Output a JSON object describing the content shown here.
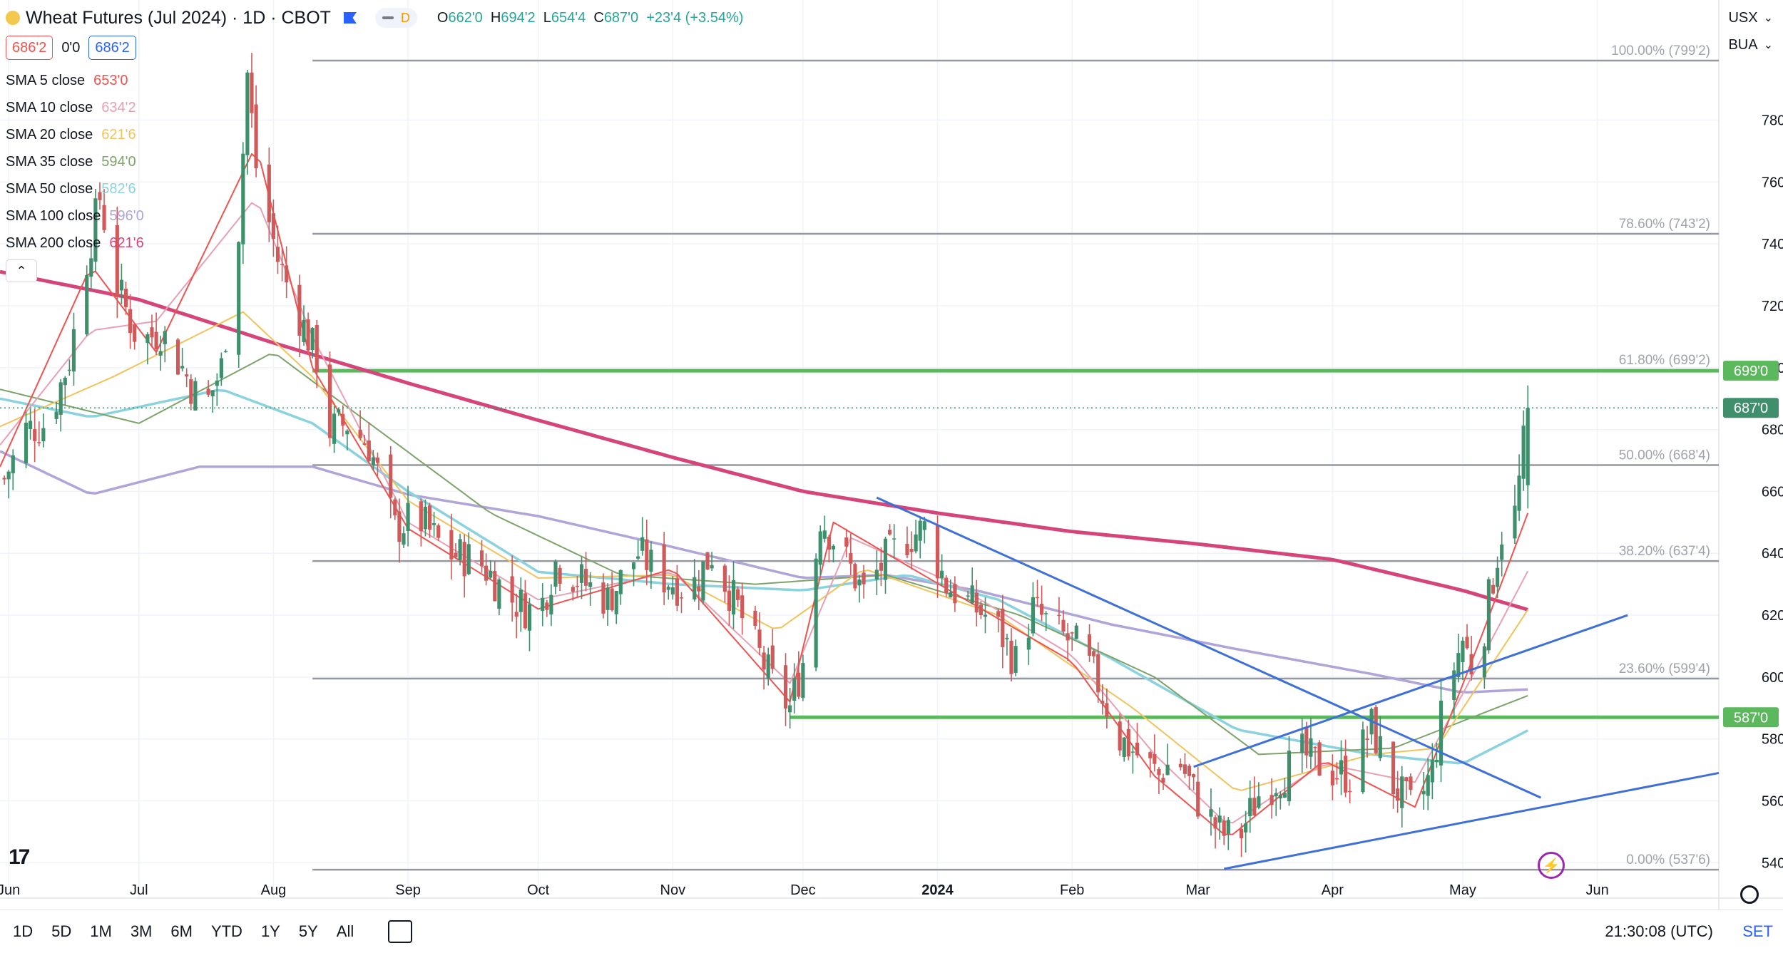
{
  "header": {
    "title": "Wheat Futures (Jul 2024) · 1D · CBOT",
    "pill_mark": "D",
    "ohlc": {
      "o_label": "O",
      "o": "662'0",
      "h_label": "H",
      "h": "694'2",
      "l_label": "L",
      "l": "654'4",
      "c_label": "C",
      "c": "687'0",
      "change": "+23'4 (+3.54%)"
    }
  },
  "trade": {
    "sell": "686'2",
    "spread": "0'0",
    "buy": "686'2"
  },
  "indicators": [
    {
      "name": "SMA 5 close",
      "value": "653'0",
      "color": "#ef5350"
    },
    {
      "name": "SMA 10 close",
      "value": "634'2",
      "color": "#e8a0b4"
    },
    {
      "name": "SMA 20 close",
      "value": "621'6",
      "color": "#f0c45a"
    },
    {
      "name": "SMA 35 close",
      "value": "594'0",
      "color": "#7da36a"
    },
    {
      "name": "SMA 50 close",
      "value": "582'6",
      "color": "#8ad2de"
    },
    {
      "name": "SMA 100 close",
      "value": "596'0",
      "color": "#b0a4d8"
    },
    {
      "name": "SMA 200 close",
      "value": "621'6",
      "color": "#d6457a"
    }
  ],
  "currency": "USX",
  "units_menu": "BUA",
  "timeframes": [
    "1D",
    "5D",
    "1M",
    "3M",
    "6M",
    "YTD",
    "1Y",
    "5Y",
    "All"
  ],
  "clock": "21:30:08 (UTC)",
  "tz_button": "SET",
  "chart_data": {
    "type": "candlestick",
    "title": "Wheat Futures (Jul 2024) · 1D · CBOT",
    "y_range": [
      535,
      805
    ],
    "y_ticks": [
      "540'0",
      "560'0",
      "580'0",
      "600'0",
      "620'0",
      "640'0",
      "660'0",
      "680'0",
      "700'0",
      "720'0",
      "740'0",
      "760'0",
      "780'0"
    ],
    "y_tick_values": [
      540,
      560,
      580,
      600,
      620,
      640,
      660,
      680,
      700,
      720,
      740,
      760,
      780
    ],
    "x_ticks": [
      "Jun",
      "Jul",
      "Aug",
      "Sep",
      "Oct",
      "Nov",
      "Dec",
      "2024",
      "Feb",
      "Mar",
      "Apr",
      "May",
      "Jun"
    ],
    "x_tick_dates": [
      "2023-06-01",
      "2023-07-01",
      "2023-08-01",
      "2023-09-01",
      "2023-10-01",
      "2023-11-01",
      "2023-12-01",
      "2024-01-01",
      "2024-02-01",
      "2024-03-01",
      "2024-04-01",
      "2024-05-01",
      "2024-06-01"
    ],
    "x_range": [
      "2023-05-30",
      "2024-06-29"
    ],
    "grid": true,
    "last_price": {
      "value": 687,
      "label": "687'0"
    },
    "fib_levels": [
      {
        "label": "100.00% (799'2)",
        "value": 799.25
      },
      {
        "label": "78.60% (743'2)",
        "value": 743.25
      },
      {
        "label": "61.80% (699'2)",
        "value": 699.25
      },
      {
        "label": "50.00% (668'4)",
        "value": 668.5
      },
      {
        "label": "38.20% (637'4)",
        "value": 637.5
      },
      {
        "label": "23.60% (599'4)",
        "value": 599.5
      },
      {
        "label": "0.00% (537'6)",
        "value": 537.75
      }
    ],
    "fib_start_date": "2023-08-10",
    "horizontal_lines": [
      {
        "value": 699,
        "label": "699'0",
        "start": "2023-08-10",
        "color": "#5cb85c"
      },
      {
        "value": 587,
        "label": "587'0",
        "start": "2023-11-28",
        "color": "#5cb85c"
      }
    ],
    "trendlines": [
      {
        "from": [
          "2023-12-18",
          658
        ],
        "to": [
          "2024-05-19",
          561
        ]
      },
      {
        "from": [
          "2024-02-29",
          571
        ],
        "to": [
          "2024-06-08",
          620
        ]
      },
      {
        "from": [
          "2024-03-07",
          538
        ],
        "to": [
          "2024-06-29",
          569
        ]
      }
    ],
    "candle_points": [
      [
        "2023-05-31",
        664
      ],
      [
        "2023-06-05",
        680
      ],
      [
        "2023-06-10",
        682
      ],
      [
        "2023-06-15",
        703
      ],
      [
        "2023-06-19",
        735
      ],
      [
        "2023-06-22",
        755
      ],
      [
        "2023-06-26",
        726
      ],
      [
        "2023-07-01",
        708
      ],
      [
        "2023-07-06",
        712
      ],
      [
        "2023-07-11",
        700
      ],
      [
        "2023-07-16",
        686
      ],
      [
        "2023-07-20",
        700
      ],
      [
        "2023-07-24",
        745
      ],
      [
        "2023-07-26",
        795
      ],
      [
        "2023-07-28",
        765
      ],
      [
        "2023-08-02",
        735
      ],
      [
        "2023-08-06",
        720
      ],
      [
        "2023-08-11",
        703
      ],
      [
        "2023-08-14",
        680
      ],
      [
        "2023-08-18",
        682
      ],
      [
        "2023-08-23",
        675
      ],
      [
        "2023-08-29",
        648
      ],
      [
        "2023-09-03",
        652
      ],
      [
        "2023-09-10",
        640
      ],
      [
        "2023-09-17",
        638
      ],
      [
        "2023-09-25",
        625
      ],
      [
        "2023-10-01",
        620
      ],
      [
        "2023-10-05",
        637
      ],
      [
        "2023-10-10",
        632
      ],
      [
        "2023-10-17",
        625
      ],
      [
        "2023-10-24",
        640
      ],
      [
        "2023-10-30",
        632
      ],
      [
        "2023-11-05",
        628
      ],
      [
        "2023-11-10",
        640
      ],
      [
        "2023-11-15",
        625
      ],
      [
        "2023-11-20",
        610
      ],
      [
        "2023-11-24",
        598
      ],
      [
        "2023-11-28",
        590
      ],
      [
        "2023-12-01",
        605
      ],
      [
        "2023-12-05",
        652
      ],
      [
        "2023-12-10",
        640
      ],
      [
        "2023-12-15",
        627
      ],
      [
        "2023-12-20",
        638
      ],
      [
        "2023-12-25",
        645
      ],
      [
        "2023-12-29",
        648
      ],
      [
        "2024-01-03",
        630
      ],
      [
        "2024-01-09",
        623
      ],
      [
        "2024-01-14",
        618
      ],
      [
        "2024-01-19",
        605
      ],
      [
        "2024-01-23",
        622
      ],
      [
        "2024-01-28",
        615
      ],
      [
        "2024-02-02",
        610
      ],
      [
        "2024-02-07",
        598
      ],
      [
        "2024-02-12",
        580
      ],
      [
        "2024-02-16",
        575
      ],
      [
        "2024-02-21",
        568
      ],
      [
        "2024-02-25",
        575
      ],
      [
        "2024-03-01",
        560
      ],
      [
        "2024-03-06",
        550
      ],
      [
        "2024-03-10",
        547
      ],
      [
        "2024-03-15",
        562
      ],
      [
        "2024-03-20",
        568
      ],
      [
        "2024-03-25",
        575
      ],
      [
        "2024-03-31",
        570
      ],
      [
        "2024-04-05",
        568
      ],
      [
        "2024-04-10",
        584
      ],
      [
        "2024-04-15",
        565
      ],
      [
        "2024-04-20",
        556
      ],
      [
        "2024-04-24",
        570
      ],
      [
        "2024-04-27",
        595
      ],
      [
        "2024-05-01",
        612
      ],
      [
        "2024-05-04",
        600
      ],
      [
        "2024-05-07",
        625
      ],
      [
        "2024-05-10",
        647
      ],
      [
        "2024-05-12",
        642
      ],
      [
        "2024-05-14",
        663
      ],
      [
        "2024-05-16",
        687
      ]
    ],
    "sma_series": [
      {
        "name": "SMA 200 close",
        "color": "#d6457a",
        "points": [
          [
            "2023-05-30",
            731
          ],
          [
            "2023-07-01",
            722
          ],
          [
            "2023-08-01",
            708
          ],
          [
            "2023-09-01",
            695
          ],
          [
            "2023-10-01",
            683
          ],
          [
            "2023-11-01",
            671
          ],
          [
            "2023-12-01",
            660
          ],
          [
            "2024-01-01",
            653
          ],
          [
            "2024-02-01",
            647
          ],
          [
            "2024-03-01",
            643
          ],
          [
            "2024-04-01",
            638
          ],
          [
            "2024-05-01",
            628
          ],
          [
            "2024-05-16",
            621.75
          ]
        ]
      },
      {
        "name": "SMA 100 close",
        "color": "#b0a4d8",
        "points": [
          [
            "2023-05-30",
            673
          ],
          [
            "2023-06-20",
            659
          ],
          [
            "2023-07-15",
            668
          ],
          [
            "2023-08-10",
            668
          ],
          [
            "2023-09-01",
            659
          ],
          [
            "2023-10-01",
            652
          ],
          [
            "2023-11-01",
            642
          ],
          [
            "2023-12-01",
            632
          ],
          [
            "2023-12-20",
            633
          ],
          [
            "2024-01-10",
            628
          ],
          [
            "2024-02-10",
            617
          ],
          [
            "2024-03-10",
            609
          ],
          [
            "2024-04-10",
            601
          ],
          [
            "2024-05-01",
            595
          ],
          [
            "2024-05-16",
            596
          ]
        ]
      },
      {
        "name": "SMA 50 close",
        "color": "#8ad2de",
        "points": [
          [
            "2023-05-30",
            690
          ],
          [
            "2023-06-20",
            684
          ],
          [
            "2023-07-20",
            693
          ],
          [
            "2023-08-10",
            682
          ],
          [
            "2023-09-01",
            660
          ],
          [
            "2023-10-01",
            634
          ],
          [
            "2023-11-01",
            630
          ],
          [
            "2023-12-01",
            628
          ],
          [
            "2023-12-25",
            633
          ],
          [
            "2024-01-15",
            625
          ],
          [
            "2024-02-10",
            606
          ],
          [
            "2024-03-10",
            583
          ],
          [
            "2024-04-10",
            575
          ],
          [
            "2024-05-01",
            572
          ],
          [
            "2024-05-16",
            582.75
          ]
        ]
      },
      {
        "name": "SMA 35 close",
        "color": "#7da36a",
        "points": [
          [
            "2023-05-30",
            693
          ],
          [
            "2023-07-01",
            682
          ],
          [
            "2023-08-01",
            705
          ],
          [
            "2023-08-25",
            680
          ],
          [
            "2023-09-20",
            653
          ],
          [
            "2023-10-20",
            633
          ],
          [
            "2023-11-20",
            630
          ],
          [
            "2023-12-20",
            633
          ],
          [
            "2024-01-20",
            620
          ],
          [
            "2024-02-20",
            600
          ],
          [
            "2024-03-15",
            575
          ],
          [
            "2024-04-15",
            577
          ],
          [
            "2024-05-16",
            594
          ]
        ]
      },
      {
        "name": "SMA 20 close",
        "color": "#f0c45a",
        "points": [
          [
            "2023-05-30",
            681
          ],
          [
            "2023-06-25",
            697
          ],
          [
            "2023-07-25",
            718
          ],
          [
            "2023-08-10",
            697
          ],
          [
            "2023-09-01",
            657
          ],
          [
            "2023-10-01",
            632
          ],
          [
            "2023-11-01",
            633
          ],
          [
            "2023-11-25",
            615
          ],
          [
            "2023-12-15",
            635
          ],
          [
            "2024-01-15",
            620
          ],
          [
            "2024-02-15",
            590
          ],
          [
            "2024-03-10",
            563
          ],
          [
            "2024-04-10",
            575
          ],
          [
            "2024-04-25",
            577
          ],
          [
            "2024-05-16",
            621.75
          ]
        ]
      },
      {
        "name": "SMA 10 close",
        "color": "#e8a0b4",
        "points": [
          [
            "2023-05-30",
            675
          ],
          [
            "2023-06-20",
            712
          ],
          [
            "2023-07-05",
            715
          ],
          [
            "2023-07-28",
            755
          ],
          [
            "2023-08-10",
            710
          ],
          [
            "2023-09-01",
            650
          ],
          [
            "2023-10-01",
            625
          ],
          [
            "2023-11-01",
            634
          ],
          [
            "2023-11-28",
            598
          ],
          [
            "2023-12-12",
            645
          ],
          [
            "2024-01-05",
            630
          ],
          [
            "2024-02-01",
            607
          ],
          [
            "2024-02-20",
            575
          ],
          [
            "2024-03-08",
            552
          ],
          [
            "2024-03-30",
            572
          ],
          [
            "2024-04-20",
            566
          ],
          [
            "2024-05-05",
            605
          ],
          [
            "2024-05-16",
            634.25
          ]
        ]
      },
      {
        "name": "SMA 5 close",
        "color": "#ef5350",
        "points": [
          [
            "2023-05-30",
            668
          ],
          [
            "2023-06-20",
            733
          ],
          [
            "2023-07-05",
            705
          ],
          [
            "2023-07-28",
            772
          ],
          [
            "2023-08-10",
            700
          ],
          [
            "2023-09-01",
            648
          ],
          [
            "2023-10-01",
            622
          ],
          [
            "2023-11-01",
            635
          ],
          [
            "2023-11-28",
            592
          ],
          [
            "2023-12-08",
            650
          ],
          [
            "2024-01-05",
            627
          ],
          [
            "2024-02-01",
            605
          ],
          [
            "2024-02-20",
            568
          ],
          [
            "2024-03-08",
            548
          ],
          [
            "2024-03-30",
            573
          ],
          [
            "2024-04-20",
            558
          ],
          [
            "2024-05-05",
            612
          ],
          [
            "2024-05-16",
            653
          ]
        ]
      }
    ]
  }
}
